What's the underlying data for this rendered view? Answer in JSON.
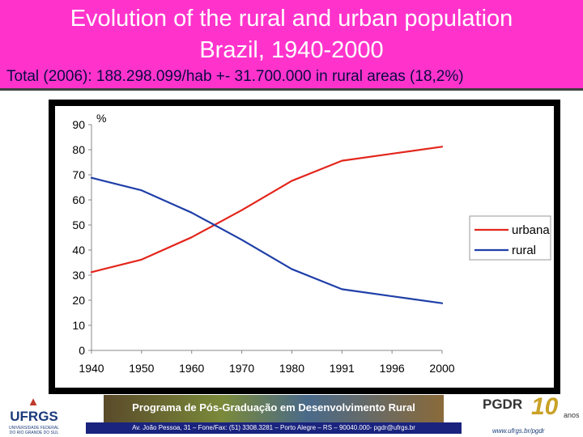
{
  "header": {
    "title_line1": "Evolution of the rural and urban population",
    "title_line2": "Brazil, 1940-2000",
    "subtitle": "Total (2006): 188.298.099/hab +- 31.700.000 in rural areas (18,2%)"
  },
  "chart_data": {
    "type": "line",
    "title": "",
    "xlabel": "",
    "ylabel": "%",
    "categories": [
      "1940",
      "1950",
      "1960",
      "1970",
      "1980",
      "1991",
      "1996",
      "2000"
    ],
    "yticks": [
      "0",
      "10",
      "20",
      "30",
      "40",
      "50",
      "60",
      "70",
      "80",
      "90"
    ],
    "ylim": [
      0,
      90
    ],
    "grid": false,
    "legend_position": "right",
    "series": [
      {
        "name": "urbana",
        "color": "#e3261c",
        "values": [
          31.2,
          36.2,
          45.1,
          55.9,
          67.6,
          75.6,
          78.4,
          81.2
        ]
      },
      {
        "name": "rural",
        "color": "#1f3fa8",
        "values": [
          68.8,
          63.8,
          54.9,
          44.1,
          32.4,
          24.4,
          21.6,
          18.8
        ]
      }
    ]
  },
  "footer": {
    "university_logo_text": "UFRGS",
    "university_small_line1": "UNIVERSIDADE FEDERAL",
    "university_small_line2": "DO RIO GRANDE DO SUL",
    "program_banner": "Programa de Pós-Graduação em Desenvolvimento Rural",
    "address": "Av. João Pessoa, 31 – Fone/Fax: (51) 3308.3281 – Porto Alegre – RS – 90040.000- pgdr@ufrgs.br",
    "pgdr_logo_text": "PGDR",
    "anniversary_number": "10",
    "anniversary_label": "anos",
    "website": "www.ufrgs.br/pgdr"
  }
}
